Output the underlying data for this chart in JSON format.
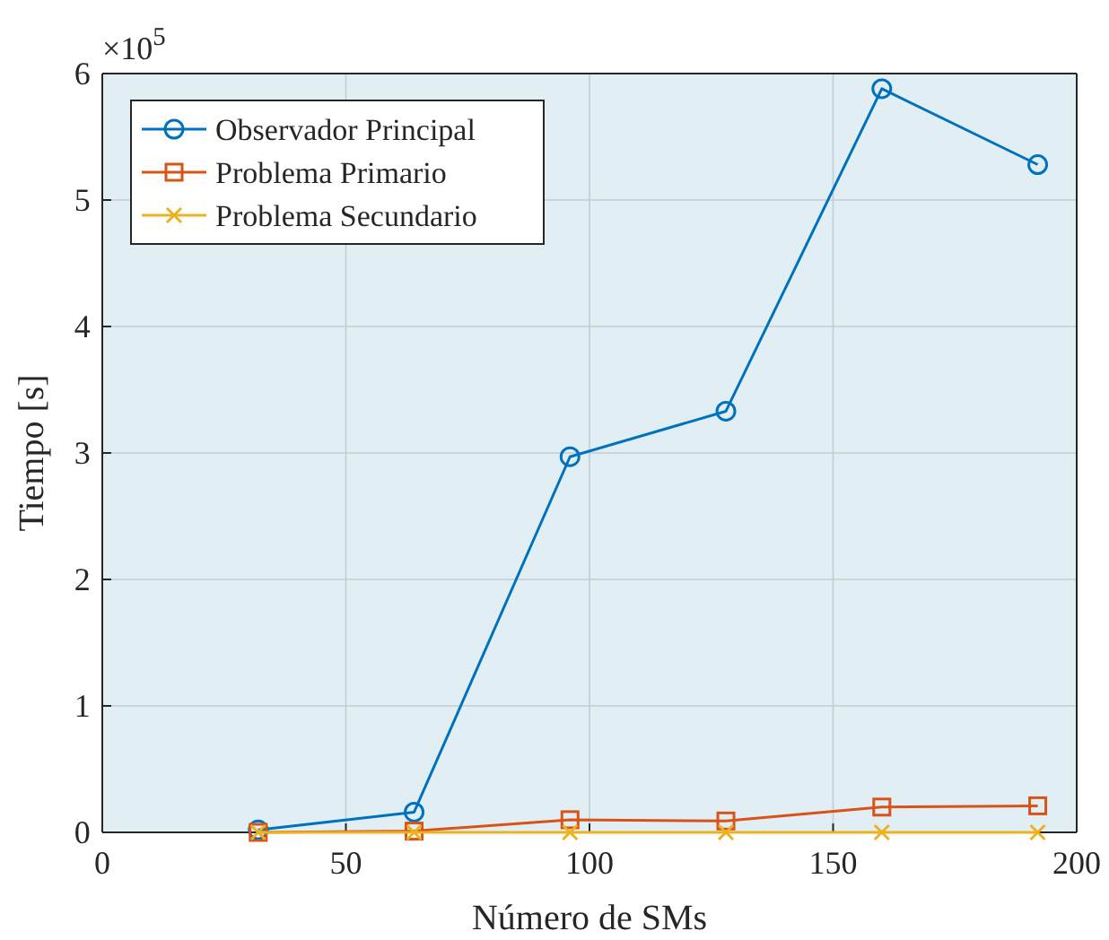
{
  "chart_data": {
    "type": "line",
    "xlabel": "Número de SMs",
    "ylabel": "Tiempo [s]",
    "x": [
      32,
      64,
      96,
      128,
      160,
      192
    ],
    "series": [
      {
        "name": "Observador Principal",
        "color": "#0072bd",
        "marker": "circle",
        "values": [
          0.02,
          0.16,
          2.97,
          3.33,
          5.88,
          5.28
        ]
      },
      {
        "name": "Problema Primario",
        "color": "#d95319",
        "marker": "square",
        "values": [
          0.0,
          0.01,
          0.1,
          0.09,
          0.2,
          0.21
        ]
      },
      {
        "name": "Problema Secundario",
        "color": "#edb120",
        "marker": "cross",
        "values": [
          0,
          0,
          0,
          0,
          0,
          0
        ]
      }
    ],
    "xlim": [
      0,
      200
    ],
    "xticks": [
      0,
      50,
      100,
      150,
      200
    ],
    "ylim": [
      0,
      6
    ],
    "yticks": [
      0,
      1,
      2,
      3,
      4,
      5,
      6
    ],
    "annotations": [
      "×10$^{5}$"
    ],
    "grid": true,
    "legend": "top left",
    "line_style": "solid"
  }
}
